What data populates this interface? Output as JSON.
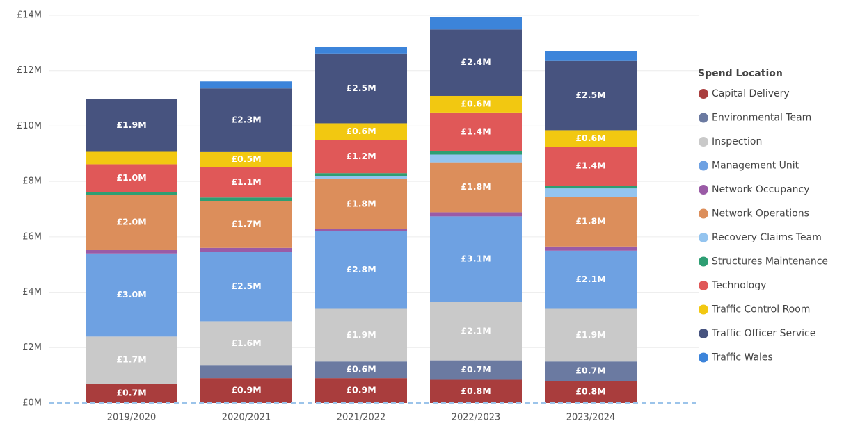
{
  "chart_data": {
    "type": "stacked_bar",
    "categories": [
      "2019/2020",
      "2020/2021",
      "2021/2022",
      "2022/2023",
      "2023/2024"
    ],
    "legend_title": "Spend Location",
    "legend": "right",
    "grid": true,
    "ylim": [
      0,
      14
    ],
    "yticks": [
      {
        "value": 0,
        "label": "£0M"
      },
      {
        "value": 2,
        "label": "£2M"
      },
      {
        "value": 4,
        "label": "£4M"
      },
      {
        "value": 6,
        "label": "£6M"
      },
      {
        "value": 8,
        "label": "£8M"
      },
      {
        "value": 10,
        "label": "£10M"
      },
      {
        "value": 12,
        "label": "£12M"
      },
      {
        "value": 14,
        "label": "£14M"
      }
    ],
    "series": [
      {
        "name": "Capital Delivery",
        "color": "#a93d3d",
        "values": [
          0.7,
          0.9,
          0.9,
          0.84,
          0.8
        ],
        "value_labels": [
          "£0.7M",
          "£0.9M",
          "£0.9M",
          "£0.8M",
          "£0.8M"
        ]
      },
      {
        "name": "Environmental Team",
        "color": "#6b7aa1",
        "values": [
          0,
          0.45,
          0.6,
          0.7,
          0.7
        ],
        "value_labels": [
          null,
          null,
          "£0.6M",
          "£0.7M",
          "£0.7M"
        ]
      },
      {
        "name": "Inspection",
        "color": "#c9c9c9",
        "values": [
          1.7,
          1.6,
          1.9,
          2.1,
          1.9
        ],
        "value_labels": [
          "£1.7M",
          "£1.6M",
          "£1.9M",
          "£2.1M",
          "£1.9M"
        ]
      },
      {
        "name": "Management Unit",
        "color": "#6ea1e2",
        "values": [
          3.0,
          2.5,
          2.8,
          3.1,
          2.1
        ],
        "value_labels": [
          "£3.0M",
          "£2.5M",
          "£2.8M",
          "£3.1M",
          "£2.1M"
        ]
      },
      {
        "name": "Network Occupancy",
        "color": "#9a5ba6",
        "values": [
          0.12,
          0.15,
          0.08,
          0.15,
          0.15
        ],
        "value_labels": [
          null,
          null,
          null,
          null,
          null
        ]
      },
      {
        "name": "Network Operations",
        "color": "#dc8e5b",
        "values": [
          2.0,
          1.7,
          1.8,
          1.8,
          1.8
        ],
        "value_labels": [
          "£2.0M",
          "£1.7M",
          "£1.8M",
          "£1.8M",
          "£1.8M"
        ]
      },
      {
        "name": "Recovery Claims Team",
        "color": "#94c4ef",
        "values": [
          0,
          0,
          0.12,
          0.28,
          0.3
        ],
        "value_labels": [
          null,
          null,
          null,
          null,
          null
        ]
      },
      {
        "name": "Structures Maintenance",
        "color": "#2e9e73",
        "values": [
          0.1,
          0.12,
          0.1,
          0.12,
          0.1
        ],
        "value_labels": [
          null,
          null,
          null,
          null,
          null
        ]
      },
      {
        "name": "Technology",
        "color": "#e05858",
        "values": [
          1.0,
          1.1,
          1.2,
          1.4,
          1.4
        ],
        "value_labels": [
          "£1.0M",
          "£1.1M",
          "£1.2M",
          "£1.4M",
          "£1.4M"
        ]
      },
      {
        "name": "Traffic Control Room",
        "color": "#f2c811",
        "values": [
          0.45,
          0.54,
          0.6,
          0.6,
          0.6
        ],
        "value_labels": [
          null,
          "£0.5M",
          "£0.6M",
          "£0.6M",
          "£0.6M"
        ]
      },
      {
        "name": "Traffic Officer Service",
        "color": "#47537f",
        "values": [
          1.9,
          2.3,
          2.5,
          2.4,
          2.5
        ],
        "value_labels": [
          "£1.9M",
          "£2.3M",
          "£2.5M",
          "£2.4M",
          "£2.5M"
        ]
      },
      {
        "name": "Traffic Wales",
        "color": "#3c84da",
        "values": [
          0,
          0.25,
          0.25,
          0.45,
          0.35
        ],
        "value_labels": [
          null,
          null,
          null,
          null,
          null
        ]
      }
    ]
  }
}
